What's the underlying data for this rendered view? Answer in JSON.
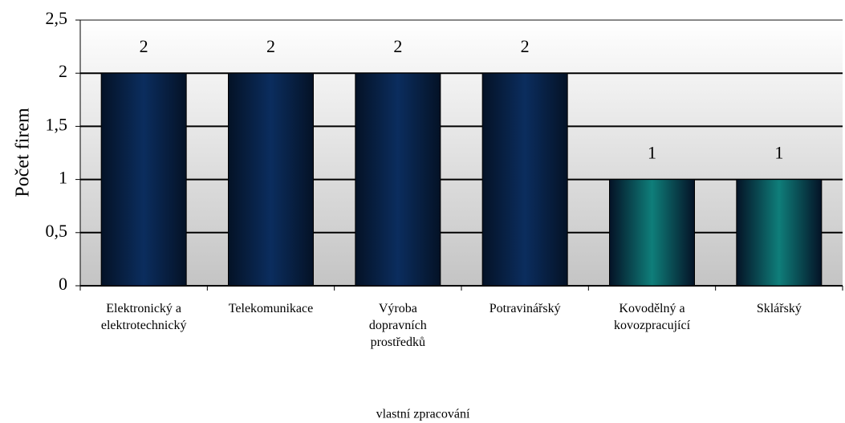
{
  "chart_data": {
    "type": "bar",
    "y_label": "Počet firem",
    "categories": [
      "Elektronický a\nelektrotechnický",
      "Telekomunikace",
      "Výroba\ndopravních\nprostředků",
      "Potravinářský",
      "Kovodělný a\nkovozpracující",
      "Sklářský"
    ],
    "values": [
      2,
      2,
      2,
      2,
      1,
      1
    ],
    "colors": [
      "#0b2d5e",
      "#0b2d5e",
      "#0b2d5e",
      "#0b2d5e",
      "#0f7e7a",
      "#0f7e7a"
    ],
    "ylim": [
      0,
      2.5
    ],
    "yticks": [
      0,
      {
        "value": 0.5,
        "label": "0,5"
      },
      1,
      {
        "value": 1.5,
        "label": "1,5"
      },
      2,
      {
        "value": 2.5,
        "label": "2,5"
      }
    ],
    "grid": true,
    "note": "vlastní zpracování"
  }
}
